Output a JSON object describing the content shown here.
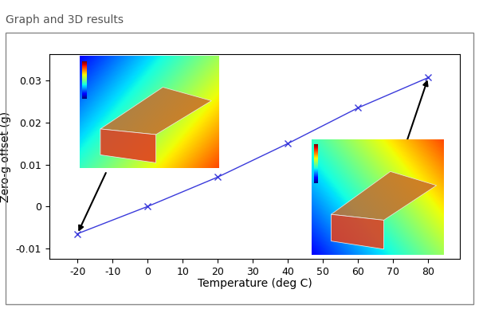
{
  "chart_data": {
    "type": "line",
    "title": "Graph and 3D results",
    "x_label": "Temperature (deg C)",
    "y_label": "Zero-g offset (g)",
    "x": [
      -20,
      0,
      20,
      40,
      60,
      80
    ],
    "values": [
      -0.0065,
      0.0,
      0.007,
      0.015,
      0.0235,
      0.0307
    ],
    "color": "#3a3adb",
    "marker": "x",
    "line_style": "solid",
    "xlim": [
      -28,
      89
    ],
    "xticks": [
      -20,
      -10,
      0,
      10,
      20,
      30,
      40,
      50,
      60,
      70,
      80
    ],
    "ylim": [
      -0.0125,
      0.0363
    ],
    "yticks": [
      -0.01,
      0,
      0.01,
      0.02,
      0.03
    ],
    "grid": false
  }
}
